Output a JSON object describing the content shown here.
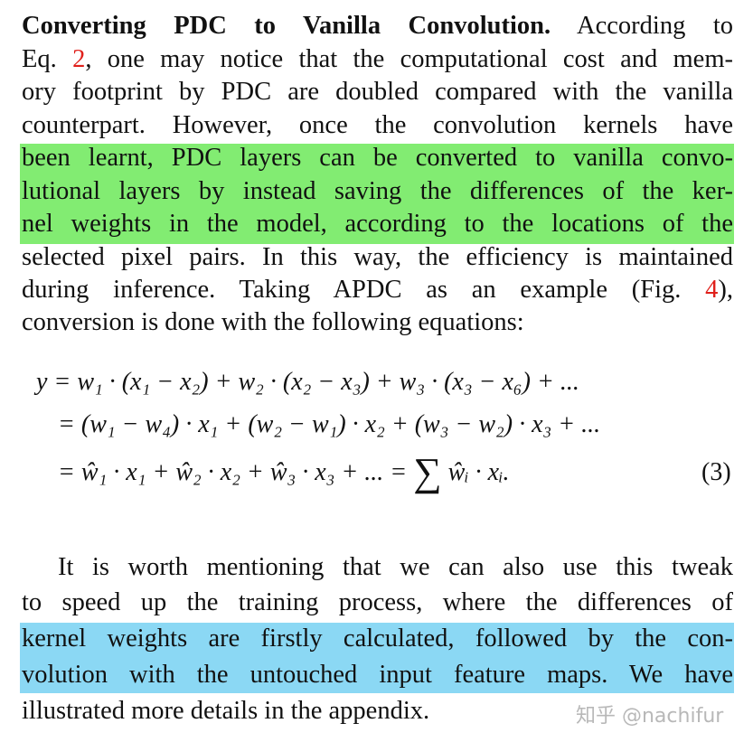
{
  "paragraph1": {
    "heading": "Converting PDC to Vanilla Convolution.",
    "lines": [
      " According to",
      [
        "Eq. ",
        "2",
        ", one may notice that the computational cost and mem-"
      ],
      "ory footprint by PDC are doubled compared with the vanilla",
      "counterpart.  However, once the convolution kernels have",
      "been learnt, PDC layers can be converted to vanilla convo-",
      "lutional layers by instead saving the differences of the ker-",
      "nel weights in the model, according to the locations of the",
      "selected pixel pairs. In this way, the efficiency is maintained",
      [
        "during inference.  Taking APDC as an example (Fig. ",
        "4",
        "),"
      ],
      "conversion is done with the following equations:"
    ]
  },
  "equation": {
    "lines": [
      "y = w₁ · (x₁ − x₂) + w₂ · (x₂ − x₃) + w₃ · (x₃ − x₆) + ...",
      "= (w₁ − w₄) · x₁ + (w₂ − w₁) · x₂ + (w₃ − w₂) · x₃ + ...",
      "= ŵ₁ · x₁ + ŵ₂ · x₂ + ŵ₃ · x₃ + ... =",
      "∑",
      "ŵᵢ · xᵢ."
    ],
    "number": "(3)"
  },
  "paragraph2": {
    "lines": [
      "It is worth mentioning that we can also use this tweak",
      "to speed up the training process, where the differences of",
      "kernel weights are firstly calculated, followed by the con-",
      "volution with the untouched input feature maps.  We have",
      "illustrated more details in the appendix."
    ]
  },
  "highlights": {
    "green": "#82ec72",
    "blue": "#8bd8f4"
  },
  "ref_color": "#e0201b",
  "watermark": "知乎 @nachifur"
}
